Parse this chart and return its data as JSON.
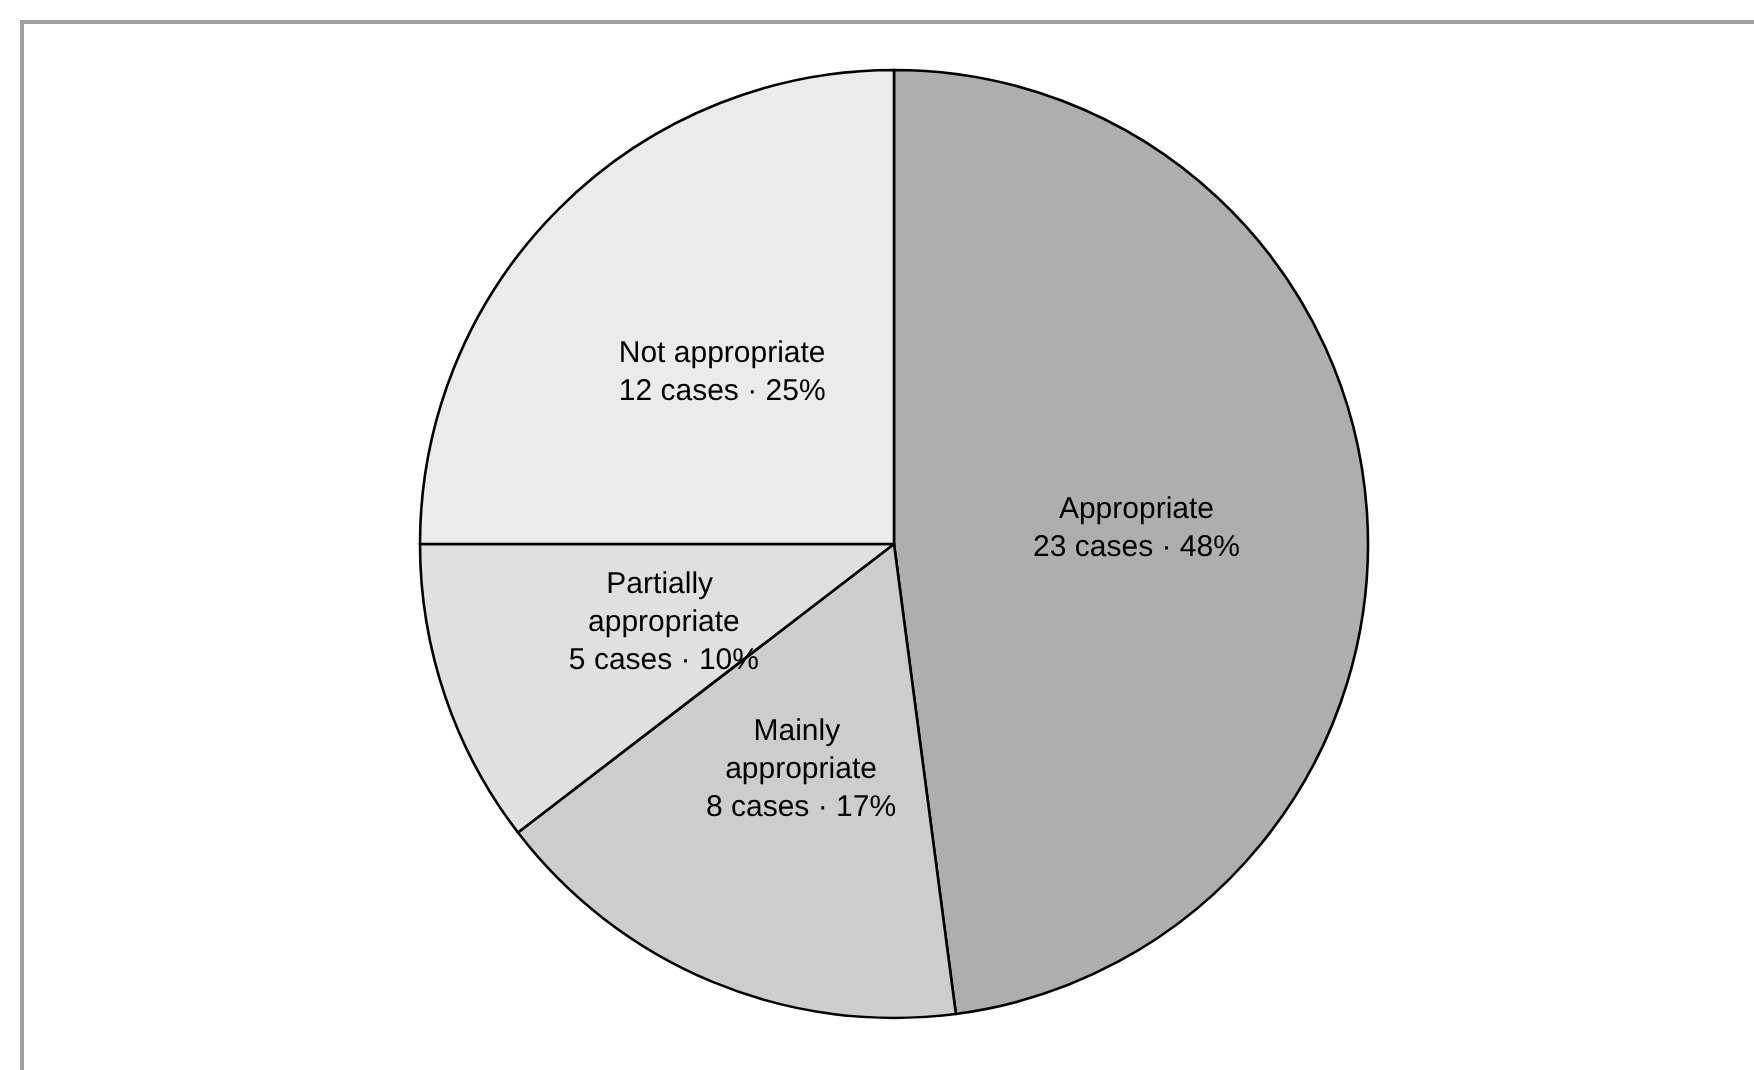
{
  "chart_data": {
    "type": "pie",
    "categories": [
      "Appropriate",
      "Mainly appropriate",
      "Partially appropriate",
      "Not appropriate"
    ],
    "values": [
      23,
      8,
      5,
      12
    ],
    "value_labels": [
      "23 cases · 48%",
      "8 cases · 17%",
      "5 cases · 10%",
      "12 cases · 25%"
    ],
    "colors": [
      "#aeaeae",
      "#cdcdcd",
      "#e0e0e0",
      "#ebebeb"
    ],
    "legend": false
  }
}
